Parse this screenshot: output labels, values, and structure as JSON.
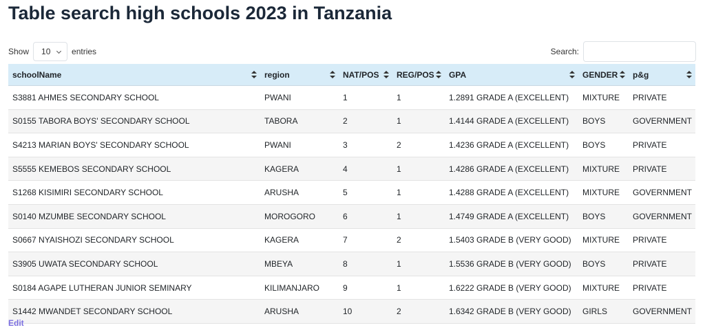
{
  "title": "Table search high schools 2023 in Tanzania",
  "controls": {
    "show": "Show",
    "length": "10",
    "entries": "entries",
    "search": "Search:"
  },
  "table": {
    "headers": [
      "schoolName",
      "region",
      "NAT/POS",
      "REG/POS",
      "GPA",
      "GENDER",
      "p&g"
    ],
    "rows": [
      [
        "S3881 AHMES SECONDARY SCHOOL",
        "PWANI",
        "1",
        "1",
        "1.2891 GRADE A (EXCELLENT)",
        "MIXTURE",
        "PRIVATE"
      ],
      [
        "S0155 TABORA BOYS' SECONDARY SCHOOL",
        "TABORA",
        "2",
        "1",
        "1.4144 GRADE A (EXCELLENT)",
        "BOYS",
        "GOVERNMENT"
      ],
      [
        "S4213 MARIAN BOYS' SECONDARY SCHOOL",
        "PWANI",
        "3",
        "2",
        "1.4236 GRADE A (EXCELLENT)",
        "BOYS",
        "PRIVATE"
      ],
      [
        "S5555 KEMEBOS SECONDARY SCHOOL",
        "KAGERA",
        "4",
        "1",
        "1.4286 GRADE A (EXCELLENT)",
        "MIXTURE",
        "PRIVATE"
      ],
      [
        "S1268 KISIMIRI SECONDARY SCHOOL",
        "ARUSHA",
        "5",
        "1",
        "1.4288 GRADE A (EXCELLENT)",
        "MIXTURE",
        "GOVERNMENT"
      ],
      [
        "S0140 MZUMBE SECONDARY SCHOOL",
        "MOROGORO",
        "6",
        "1",
        "1.4749 GRADE A (EXCELLENT)",
        "BOYS",
        "GOVERNMENT"
      ],
      [
        "S0667 NYAISHOZI SECONDARY SCHOOL",
        "KAGERA",
        "7",
        "2",
        "1.5403 GRADE B (VERY GOOD)",
        "MIXTURE",
        "PRIVATE"
      ],
      [
        "S3905 UWATA SECONDARY SCHOOL",
        "MBEYA",
        "8",
        "1",
        "1.5536 GRADE B (VERY GOOD)",
        "BOYS",
        "PRIVATE"
      ],
      [
        "S0184 AGAPE LUTHERAN JUNIOR SEMINARY",
        "KILIMANJARO",
        "9",
        "1",
        "1.6222 GRADE B (VERY GOOD)",
        "MIXTURE",
        "PRIVATE"
      ],
      [
        "S1442 MWANDET SECONDARY SCHOOL",
        "ARUSHA",
        "10",
        "2",
        "1.6342 GRADE B (VERY GOOD)",
        "GIRLS",
        "GOVERNMENT"
      ]
    ]
  },
  "footer": {
    "edit": "Edit"
  }
}
